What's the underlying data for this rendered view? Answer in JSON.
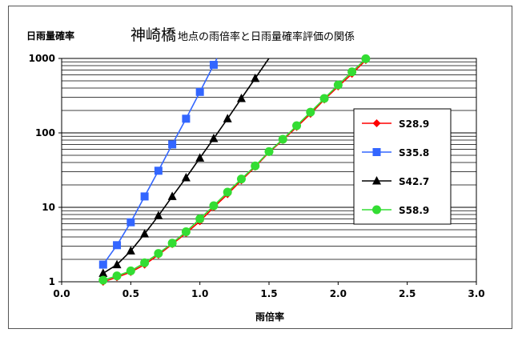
{
  "chart_data": {
    "type": "line",
    "title": "神崎橋",
    "subtitle": "地点の雨倍率と日雨量確率評価の関係",
    "xlabel": "雨倍率",
    "ylabel": "日雨量確率",
    "xlim": [
      0.0,
      3.0
    ],
    "ylim": [
      1,
      1000
    ],
    "yscale": "log",
    "x_ticks": [
      "0.0",
      "0.5",
      "1.0",
      "1.5",
      "2.0",
      "2.5",
      "3.0"
    ],
    "y_ticks": [
      "1",
      "10",
      "100",
      "1000"
    ],
    "grid": "horizontal",
    "legend_position": "right",
    "series": [
      {
        "name": "S28.9",
        "color": "#ff0000",
        "marker": "diamond",
        "x": [
          0.3,
          0.4,
          0.5,
          0.6,
          0.7,
          0.8,
          0.9,
          1.0,
          1.1,
          1.2,
          1.3,
          1.4,
          1.5,
          1.6,
          1.7,
          1.8,
          1.9,
          2.0,
          2.1,
          2.2
        ],
        "y": [
          1.0,
          1.15,
          1.35,
          1.7,
          2.3,
          3.2,
          4.5,
          6.5,
          10,
          15,
          23,
          35,
          55,
          80,
          120,
          180,
          280,
          420,
          620,
          950
        ]
      },
      {
        "name": "S35.8",
        "color": "#3366ff",
        "marker": "square",
        "x": [
          0.3,
          0.4,
          0.5,
          0.6,
          0.7,
          0.8,
          0.9,
          1.0,
          1.1
        ],
        "y": [
          1.7,
          3.1,
          6.3,
          14,
          31,
          70,
          155,
          355,
          820
        ]
      },
      {
        "name": "S42.7",
        "color": "#000000",
        "marker": "triangle",
        "x": [
          0.3,
          0.4,
          0.5,
          0.6,
          0.7,
          0.8,
          0.9,
          1.0,
          1.1,
          1.2,
          1.3,
          1.4
        ],
        "y": [
          1.3,
          1.7,
          2.6,
          4.4,
          7.7,
          14,
          25,
          46,
          84,
          155,
          290,
          540
        ]
      },
      {
        "name": "S58.9",
        "color": "#33dd33",
        "marker": "circle",
        "x": [
          0.3,
          0.4,
          0.5,
          0.6,
          0.7,
          0.8,
          0.9,
          1.0,
          1.1,
          1.2,
          1.3,
          1.4,
          1.5,
          1.6,
          1.7,
          1.8,
          1.9,
          2.0,
          2.1,
          2.2
        ],
        "y": [
          1.05,
          1.2,
          1.4,
          1.8,
          2.4,
          3.3,
          4.7,
          7,
          10.5,
          16,
          24,
          36,
          56,
          82,
          125,
          190,
          290,
          440,
          660,
          990
        ]
      }
    ]
  }
}
